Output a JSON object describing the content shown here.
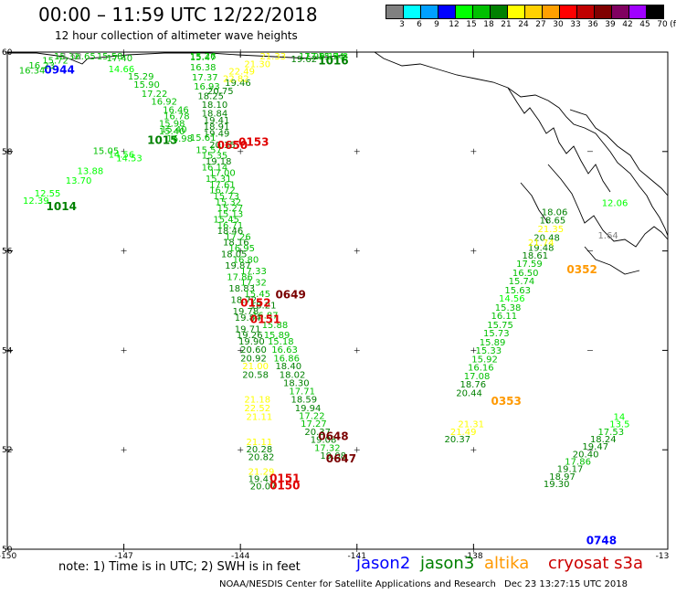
{
  "header": {
    "title": "00:00 – 11:59 UTC 12/22/2018",
    "subtitle": "12 hour collection of altimeter wave heights"
  },
  "colorbar": {
    "unit_label": "(ft)",
    "ticks": [
      "3",
      "6",
      "9",
      "12",
      "15",
      "18",
      "21",
      "24",
      "27",
      "30",
      "33",
      "36",
      "39",
      "42",
      "45",
      "70"
    ],
    "colors": [
      "#808080",
      "#00ffff",
      "#00a0ff",
      "#0000ff",
      "#00ff00",
      "#00c000",
      "#008000",
      "#ffff00",
      "#ffd000",
      "#ffa000",
      "#ff0000",
      "#c00000",
      "#800000",
      "#800060",
      "#a000ff",
      "#000000"
    ]
  },
  "map": {
    "lon_ticks": [
      "-150",
      "-147",
      "-144",
      "-141",
      "-138",
      "-13"
    ],
    "lat_ticks": [
      "60",
      "58",
      "56",
      "54",
      "52",
      "50"
    ]
  },
  "tracks": [
    {
      "satellite": "jason2",
      "points": [
        {
          "lon": -149.05,
          "lat": 59.57,
          "text": "0944"
        },
        {
          "lon": -148.4,
          "lat": 59.95,
          "text": "16.65"
        },
        {
          "lon": -135.1,
          "lat": 50.1,
          "text": "0748"
        },
        {
          "lon": -134.8,
          "lat": 56.25,
          "text": "1.64"
        }
      ]
    },
    {
      "satellite": "jason3",
      "points": [
        {
          "lon": -149.7,
          "lat": 59.57,
          "text": "16.34"
        },
        {
          "lon": -149.45,
          "lat": 59.67,
          "text": "16.23"
        },
        {
          "lon": -149.1,
          "lat": 59.77,
          "text": "15.72"
        },
        {
          "lon": -148.8,
          "lat": 59.87,
          "text": "15.32"
        },
        {
          "lon": -148.6,
          "lat": 59.9,
          "text": "1.52"
        },
        {
          "lon": -147.45,
          "lat": 59.82,
          "text": "17.40"
        },
        {
          "lon": -147.4,
          "lat": 59.6,
          "text": "14.66"
        },
        {
          "lon": -146.9,
          "lat": 59.45,
          "text": "15.29"
        },
        {
          "lon": -146.75,
          "lat": 59.28,
          "text": "15.90"
        },
        {
          "lon": -146.55,
          "lat": 59.1,
          "text": "17.22"
        },
        {
          "lon": -146.3,
          "lat": 58.94,
          "text": "16.92"
        },
        {
          "lon": -146.0,
          "lat": 58.78,
          "text": "16.46"
        },
        {
          "lon": -145.98,
          "lat": 58.65,
          "text": "16.78"
        },
        {
          "lon": -146.1,
          "lat": 58.5,
          "text": "15.98"
        },
        {
          "lon": -146.05,
          "lat": 58.38,
          "text": "15.40"
        },
        {
          "lon": -146.4,
          "lat": 58.15,
          "text": "1015"
        },
        {
          "lon": -149.0,
          "lat": 56.82,
          "text": "1014"
        },
        {
          "lon": -145.3,
          "lat": 60.02,
          "text": "15.26"
        },
        {
          "lon": -145.3,
          "lat": 59.83,
          "text": "15.47"
        },
        {
          "lon": -145.3,
          "lat": 59.63,
          "text": "16.38"
        },
        {
          "lon": -145.25,
          "lat": 59.43,
          "text": "17.37"
        },
        {
          "lon": -145.2,
          "lat": 59.25,
          "text": "16.93"
        },
        {
          "lon": -145.1,
          "lat": 59.05,
          "text": "18.25"
        },
        {
          "lon": -145.0,
          "lat": 58.88,
          "text": "18.10"
        },
        {
          "lon": -145.0,
          "lat": 58.7,
          "text": "18.84"
        },
        {
          "lon": -144.95,
          "lat": 58.57,
          "text": "19.41"
        },
        {
          "lon": -144.95,
          "lat": 58.44,
          "text": "18.91"
        },
        {
          "lon": -144.95,
          "lat": 58.3,
          "text": "19.49"
        },
        {
          "lon": -145.3,
          "lat": 58.22,
          "text": "15.61"
        },
        {
          "lon": -144.8,
          "lat": 58.07,
          "text": "20.35"
        },
        {
          "lon": -145.15,
          "lat": 57.97,
          "text": "15.57"
        },
        {
          "lon": -145.0,
          "lat": 57.86,
          "text": "15.35"
        },
        {
          "lon": -144.9,
          "lat": 57.74,
          "text": "19.18"
        },
        {
          "lon": -145.0,
          "lat": 57.62,
          "text": "16.14"
        },
        {
          "lon": -144.8,
          "lat": 57.51,
          "text": "17.00"
        },
        {
          "lon": -144.9,
          "lat": 57.39,
          "text": "15.31"
        },
        {
          "lon": -144.8,
          "lat": 57.27,
          "text": "17.61"
        },
        {
          "lon": -144.8,
          "lat": 57.16,
          "text": "16.72"
        },
        {
          "lon": -144.7,
          "lat": 57.04,
          "text": "15.73"
        },
        {
          "lon": -144.65,
          "lat": 56.92,
          "text": "15.32"
        },
        {
          "lon": -144.6,
          "lat": 56.8,
          "text": "15.27"
        },
        {
          "lon": -144.6,
          "lat": 56.68,
          "text": "15.13"
        },
        {
          "lon": -144.7,
          "lat": 56.57,
          "text": "15.45"
        },
        {
          "lon": -144.6,
          "lat": 56.45,
          "text": "16.71"
        },
        {
          "lon": -144.6,
          "lat": 56.34,
          "text": "18.46"
        },
        {
          "lon": -144.4,
          "lat": 56.22,
          "text": "17.26"
        },
        {
          "lon": -144.45,
          "lat": 56.11,
          "text": "18.16"
        },
        {
          "lon": -144.3,
          "lat": 55.99,
          "text": "16.95"
        },
        {
          "lon": -144.5,
          "lat": 55.87,
          "text": "18.05"
        },
        {
          "lon": -144.2,
          "lat": 55.76,
          "text": "16.80"
        },
        {
          "lon": -144.4,
          "lat": 55.64,
          "text": "19.87"
        },
        {
          "lon": -144.0,
          "lat": 55.53,
          "text": "17.33"
        },
        {
          "lon": -144.35,
          "lat": 55.41,
          "text": "17.86"
        },
        {
          "lon": -144.0,
          "lat": 55.3,
          "text": "17.32"
        },
        {
          "lon": -144.3,
          "lat": 55.18,
          "text": "18.83"
        },
        {
          "lon": -143.9,
          "lat": 55.07,
          "text": "15.45"
        },
        {
          "lon": -144.25,
          "lat": 54.95,
          "text": "18.72"
        },
        {
          "lon": -143.75,
          "lat": 54.84,
          "text": "18.21"
        },
        {
          "lon": -144.2,
          "lat": 54.72,
          "text": "19.78"
        },
        {
          "lon": -143.7,
          "lat": 54.64,
          "text": "16.87"
        },
        {
          "lon": -144.15,
          "lat": 54.6,
          "text": "19.84"
        },
        {
          "lon": -143.45,
          "lat": 54.45,
          "text": "15.88"
        },
        {
          "lon": -144.15,
          "lat": 54.37,
          "text": "19.71"
        },
        {
          "lon": -143.4,
          "lat": 54.25,
          "text": "15.89"
        },
        {
          "lon": -144.1,
          "lat": 54.25,
          "text": "19.26"
        },
        {
          "lon": -143.3,
          "lat": 54.12,
          "text": "15.18"
        },
        {
          "lon": -144.05,
          "lat": 54.12,
          "text": "19.90"
        },
        {
          "lon": -143.2,
          "lat": 53.95,
          "text": "16.63"
        },
        {
          "lon": -144.0,
          "lat": 53.95,
          "text": "20.60"
        },
        {
          "lon": -143.15,
          "lat": 53.78,
          "text": "16.86"
        },
        {
          "lon": -144.0,
          "lat": 53.78,
          "text": "20.92"
        },
        {
          "lon": -143.1,
          "lat": 53.62,
          "text": "18.40"
        },
        {
          "lon": -143.95,
          "lat": 53.62,
          "text": "21.00"
        },
        {
          "lon": -143.0,
          "lat": 53.45,
          "text": "18.02"
        },
        {
          "lon": -143.95,
          "lat": 53.45,
          "text": "20.58"
        },
        {
          "lon": -142.9,
          "lat": 53.28,
          "text": "18.30"
        },
        {
          "lon": -142.75,
          "lat": 53.12,
          "text": "17.71"
        },
        {
          "lon": -142.7,
          "lat": 52.95,
          "text": "18.59"
        },
        {
          "lon": -142.6,
          "lat": 52.78,
          "text": "19.94"
        },
        {
          "lon": -142.5,
          "lat": 52.62,
          "text": "17.22"
        },
        {
          "lon": -142.45,
          "lat": 52.46,
          "text": "17.27"
        },
        {
          "lon": -142.35,
          "lat": 52.3,
          "text": "20.37"
        },
        {
          "lon": -142.2,
          "lat": 52.14,
          "text": "19.08"
        },
        {
          "lon": -142.1,
          "lat": 51.98,
          "text": "17.32"
        },
        {
          "lon": -141.95,
          "lat": 51.82,
          "text": "19.08"
        },
        {
          "lon": -143.85,
          "lat": 51.95,
          "text": "20.28"
        },
        {
          "lon": -143.8,
          "lat": 51.79,
          "text": "20.82"
        },
        {
          "lon": -143.8,
          "lat": 51.35,
          "text": "19.41"
        },
        {
          "lon": -143.75,
          "lat": 51.2,
          "text": "20.07"
        },
        {
          "lon": -142.5,
          "lat": 59.95,
          "text": "17.99"
        },
        {
          "lon": -142.7,
          "lat": 59.8,
          "text": "19.62"
        },
        {
          "lon": -142.35,
          "lat": 60.05,
          "text": "17.51"
        },
        {
          "lon": -142.0,
          "lat": 60.2,
          "text": "15.54"
        },
        {
          "lon": -141.75,
          "lat": 60.3,
          "text": "14.8"
        },
        {
          "lon": -142.0,
          "lat": 59.75,
          "text": "1016"
        },
        {
          "lon": -144.4,
          "lat": 59.32,
          "text": "19.46"
        },
        {
          "lon": -144.85,
          "lat": 59.15,
          "text": "20.75"
        },
        {
          "lon": -145.9,
          "lat": 58.2,
          "text": "16.98"
        },
        {
          "lon": -146.1,
          "lat": 58.35,
          "text": "15.40"
        },
        {
          "lon": -147.8,
          "lat": 57.95,
          "text": "15.05"
        },
        {
          "lon": -147.2,
          "lat": 57.8,
          "text": "14.53"
        },
        {
          "lon": -147.4,
          "lat": 57.88,
          "text": "14.56"
        },
        {
          "lon": -148.5,
          "lat": 57.35,
          "text": "13.70"
        },
        {
          "lon": -148.2,
          "lat": 57.55,
          "text": "13.88"
        },
        {
          "lon": -149.3,
          "lat": 57.1,
          "text": "12.55"
        },
        {
          "lon": -149.6,
          "lat": 56.95,
          "text": "12.39"
        },
        {
          "lon": -136.25,
          "lat": 56.72,
          "text": "18.06"
        },
        {
          "lon": -136.3,
          "lat": 56.55,
          "text": "18.65"
        },
        {
          "lon": -136.45,
          "lat": 56.2,
          "text": "20.48"
        },
        {
          "lon": -136.6,
          "lat": 56.0,
          "text": "19.48"
        },
        {
          "lon": -136.75,
          "lat": 55.85,
          "text": "18.61"
        },
        {
          "lon": -136.9,
          "lat": 55.68,
          "text": "17.59"
        },
        {
          "lon": -137.0,
          "lat": 55.5,
          "text": "16.50"
        },
        {
          "lon": -137.1,
          "lat": 55.33,
          "text": "15.74"
        },
        {
          "lon": -137.2,
          "lat": 55.15,
          "text": "15.63"
        },
        {
          "lon": -137.35,
          "lat": 54.98,
          "text": "14.56"
        },
        {
          "lon": -137.45,
          "lat": 54.8,
          "text": "15.38"
        },
        {
          "lon": -137.55,
          "lat": 54.63,
          "text": "16.11"
        },
        {
          "lon": -137.65,
          "lat": 54.45,
          "text": "15.75"
        },
        {
          "lon": -137.75,
          "lat": 54.28,
          "text": "15.73"
        },
        {
          "lon": -137.85,
          "lat": 54.1,
          "text": "15.89"
        },
        {
          "lon": -137.95,
          "lat": 53.93,
          "text": "15.33"
        },
        {
          "lon": -138.05,
          "lat": 53.76,
          "text": "15.92"
        },
        {
          "lon": -138.15,
          "lat": 53.59,
          "text": "16.16"
        },
        {
          "lon": -138.25,
          "lat": 53.42,
          "text": "17.08"
        },
        {
          "lon": -138.35,
          "lat": 53.25,
          "text": "18.76"
        },
        {
          "lon": -138.45,
          "lat": 53.08,
          "text": "20.44"
        },
        {
          "lon": -134.7,
          "lat": 56.9,
          "text": "12.06"
        },
        {
          "lon": -134.4,
          "lat": 52.6,
          "text": "14"
        },
        {
          "lon": -134.5,
          "lat": 52.45,
          "text": "13.5"
        },
        {
          "lon": -134.8,
          "lat": 52.3,
          "text": "17.53"
        },
        {
          "lon": -135.0,
          "lat": 52.15,
          "text": "18.24"
        },
        {
          "lon": -135.2,
          "lat": 52.0,
          "text": "19.47"
        },
        {
          "lon": -135.45,
          "lat": 51.85,
          "text": "20.40"
        },
        {
          "lon": -135.65,
          "lat": 51.7,
          "text": "17.86"
        },
        {
          "lon": -135.85,
          "lat": 51.55,
          "text": "19.17"
        },
        {
          "lon": -136.05,
          "lat": 51.4,
          "text": "18.97"
        },
        {
          "lon": -136.2,
          "lat": 51.25,
          "text": "19.30"
        }
      ]
    },
    {
      "satellite": "altika",
      "points": [
        {
          "lon": -147.7,
          "lat": 60.0,
          "text": "15.58"
        },
        {
          "lon": -144.45,
          "lat": 59.4,
          "text": "22.82"
        },
        {
          "lon": -144.3,
          "lat": 59.55,
          "text": "22.49"
        },
        {
          "lon": -143.9,
          "lat": 59.7,
          "text": "21.30"
        },
        {
          "lon": -143.5,
          "lat": 59.9,
          "text": "21.33"
        },
        {
          "lon": -143.9,
          "lat": 52.95,
          "text": "21.18"
        },
        {
          "lon": -143.9,
          "lat": 52.78,
          "text": "22.52"
        },
        {
          "lon": -143.85,
          "lat": 52.6,
          "text": "21.11"
        },
        {
          "lon": -143.85,
          "lat": 52.1,
          "text": "21.11"
        },
        {
          "lon": -143.8,
          "lat": 51.5,
          "text": "21.29"
        },
        {
          "lon": -136.35,
          "lat": 56.38,
          "text": "21.35"
        },
        {
          "lon": -136.6,
          "lat": 56.1,
          "text": "21.74"
        },
        {
          "lon": -135.6,
          "lat": 55.55,
          "text": "0352"
        },
        {
          "lon": -138.4,
          "lat": 52.45,
          "text": "21.31"
        },
        {
          "lon": -138.6,
          "lat": 52.3,
          "text": "21.49"
        },
        {
          "lon": -138.75,
          "lat": 52.15,
          "text": "20.37"
        },
        {
          "lon": -137.55,
          "lat": 52.9,
          "text": "0353"
        }
      ]
    },
    {
      "satellite": "cryosat",
      "points": [
        {
          "lon": -144.05,
          "lat": 58.12,
          "text": "0153"
        },
        {
          "lon": -144.6,
          "lat": 58.05,
          "text": "0650"
        },
        {
          "lon": -143.1,
          "lat": 55.05,
          "text": "0649"
        },
        {
          "lon": -144.0,
          "lat": 54.88,
          "text": "0152"
        },
        {
          "lon": -143.75,
          "lat": 54.55,
          "text": "0151"
        },
        {
          "lon": -142.0,
          "lat": 52.2,
          "text": "0648"
        },
        {
          "lon": -141.8,
          "lat": 51.75,
          "text": "0647"
        },
        {
          "lon": -143.25,
          "lat": 51.35,
          "text": "0151"
        },
        {
          "lon": -143.25,
          "lat": 51.2,
          "text": "0150"
        }
      ]
    }
  ],
  "footer": {
    "note": "note: 1) Time is in UTC; 2) SWH is in feet",
    "legend": [
      {
        "label": "jason2",
        "color": "#0000ff"
      },
      {
        "label": "jason3",
        "color": "#008000"
      },
      {
        "label": "altika",
        "color": "#ff9900"
      },
      {
        "label": "cryosat s3a",
        "color": "#cc0000"
      }
    ],
    "credit": "NOAA/NESDIS Center for Satellite Applications and Research",
    "timestamp": "Dec 23 13:27:15 UTC 2018"
  }
}
